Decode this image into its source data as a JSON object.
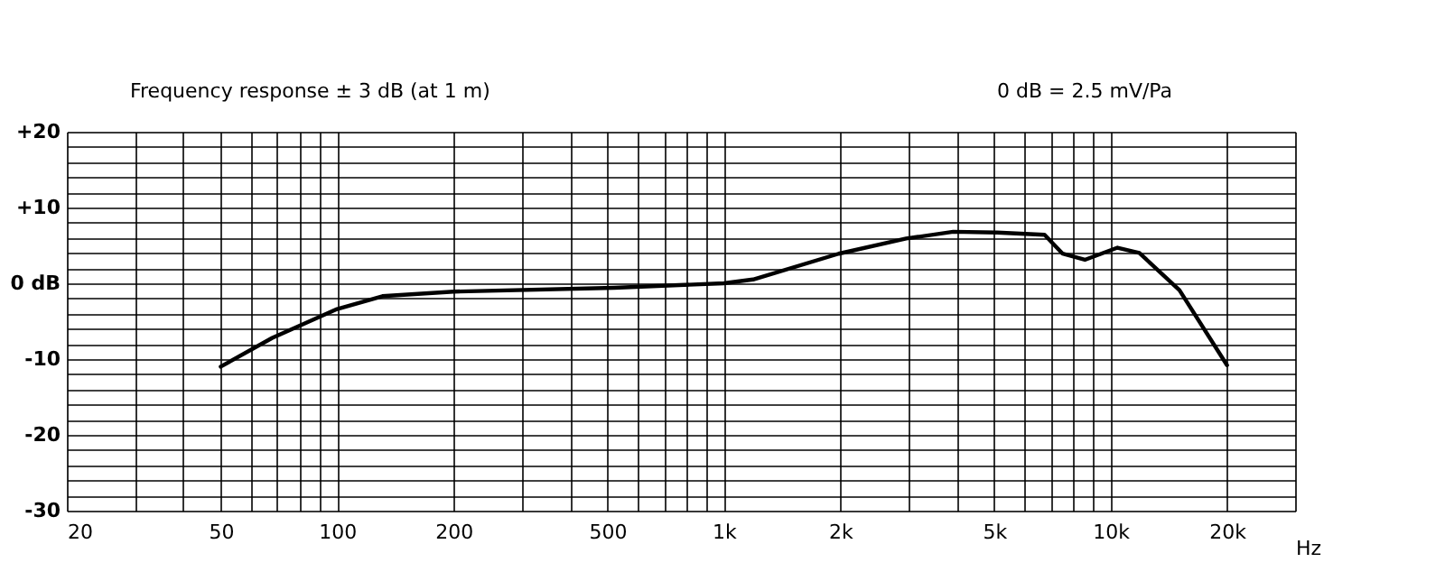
{
  "chart_data": {
    "type": "line",
    "title": "Frequency response ± 3 dB (at 1 m)",
    "annotations": [
      "0 dB =  2.5 mV/Pa"
    ],
    "xlabel": "Hz",
    "log": "x",
    "grid": true,
    "marker": "none",
    "line_style": "solid",
    "xlim": [
      20,
      30000
    ],
    "xticks": [
      20,
      {
        "value": 30,
        "label": null
      },
      {
        "value": 40,
        "label": null
      },
      50,
      {
        "value": 60,
        "label": null
      },
      {
        "value": 70,
        "label": null
      },
      {
        "value": 80,
        "label": null
      },
      {
        "value": 90,
        "label": null
      },
      100,
      200,
      {
        "value": 300,
        "label": null
      },
      {
        "value": 400,
        "label": null
      },
      500,
      {
        "value": 600,
        "label": null
      },
      {
        "value": 700,
        "label": null
      },
      {
        "value": 800,
        "label": null
      },
      {
        "value": 900,
        "label": null
      },
      {
        "value": 1000,
        "label": "1k"
      },
      {
        "value": 2000,
        "label": "2k"
      },
      {
        "value": 3000,
        "label": null
      },
      {
        "value": 4000,
        "label": null
      },
      {
        "value": 5000,
        "label": "5k"
      },
      {
        "value": 6000,
        "label": null
      },
      {
        "value": 7000,
        "label": null
      },
      {
        "value": 8000,
        "label": null
      },
      {
        "value": 9000,
        "label": null
      },
      {
        "value": 10000,
        "label": "10k"
      },
      {
        "value": 20000,
        "label": "20k"
      },
      {
        "value": 30000,
        "label": null
      }
    ],
    "ylim": [
      -30,
      20
    ],
    "yticks": [
      {
        "value": -30,
        "label": "-30"
      },
      {
        "value": -28,
        "label": null
      },
      {
        "value": -26,
        "label": null
      },
      {
        "value": -24,
        "label": null
      },
      {
        "value": -22,
        "label": null
      },
      {
        "value": -20,
        "label": "-20"
      },
      {
        "value": -18,
        "label": null
      },
      {
        "value": -16,
        "label": null
      },
      {
        "value": -14,
        "label": null
      },
      {
        "value": -12,
        "label": null
      },
      {
        "value": -10,
        "label": "-10"
      },
      {
        "value": -8,
        "label": null
      },
      {
        "value": -6,
        "label": null
      },
      {
        "value": -4,
        "label": null
      },
      {
        "value": -2,
        "label": null
      },
      {
        "value": 0,
        "label": "0 dB"
      },
      {
        "value": 2,
        "label": null
      },
      {
        "value": 4,
        "label": null
      },
      {
        "value": 6,
        "label": null
      },
      {
        "value": 8,
        "label": null
      },
      {
        "value": 10,
        "label": "+10"
      },
      {
        "value": 12,
        "label": null
      },
      {
        "value": 14,
        "label": null
      },
      {
        "value": 16,
        "label": null
      },
      {
        "value": 18,
        "label": null
      },
      {
        "value": 20,
        "label": "+20"
      }
    ],
    "series": [
      {
        "color": "#000000",
        "x": [
          50,
          68,
          100,
          131,
          200,
          520,
          1000,
          1190,
          1980,
          2960,
          3920,
          5090,
          6750,
          7520,
          8580,
          10420,
          11870,
          15070,
          20000
        ],
        "values": [
          -11.0,
          -7.2,
          -3.4,
          -1.7,
          -1.1,
          -0.6,
          0,
          0.5,
          3.9,
          5.9,
          6.8,
          6.7,
          6.4,
          3.9,
          3.1,
          4.7,
          4.0,
          -0.9,
          -10.8
        ]
      }
    ]
  }
}
